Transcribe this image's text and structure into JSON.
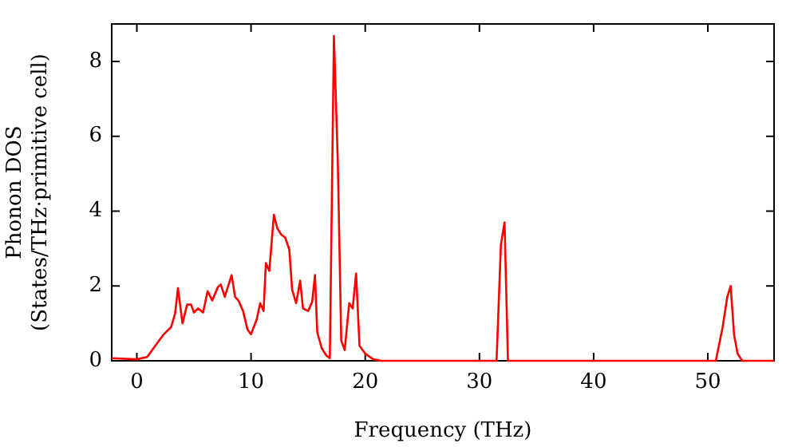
{
  "chart_data": {
    "type": "line",
    "xlabel": "Frequency (THz)",
    "ylabel": "Phonon DOS\n(States/THz·primitive cell)",
    "xlim": [
      -2.2,
      55.8
    ],
    "ylim": [
      0,
      9
    ],
    "xticks": [
      0,
      10,
      20,
      30,
      40,
      50
    ],
    "yticks": [
      0,
      2,
      4,
      6,
      8
    ],
    "grid": false,
    "legend": false,
    "marker": "none",
    "line_style": "solid",
    "series": [
      {
        "color": "#ff0000",
        "x": [
          -2.2,
          0,
          0.9,
          2.3,
          3,
          3.35,
          3.6,
          4,
          4.4,
          4.75,
          5,
          5.35,
          5.8,
          6.2,
          6.6,
          7.1,
          7.35,
          7.7,
          8.3,
          8.6,
          8.9,
          9.3,
          9.7,
          10,
          10.5,
          10.8,
          11.1,
          11.3,
          11.6,
          12,
          12.3,
          12.65,
          13,
          13.35,
          13.6,
          13.95,
          14.3,
          14.55,
          15,
          15.35,
          15.6,
          15.8,
          16.2,
          16.6,
          16.9,
          17.26,
          17.6,
          17.9,
          18.2,
          18.6,
          18.9,
          19.2,
          19.5,
          20,
          20.7,
          21.4,
          25,
          31.5,
          31.88,
          32.2,
          32.5,
          40,
          50.7,
          51.3,
          51.7,
          52,
          52.3,
          52.6,
          53,
          55.8
        ],
        "values": [
          0.07,
          0.04,
          0.1,
          0.69,
          0.9,
          1.26,
          1.94,
          1,
          1.5,
          1.5,
          1.29,
          1.4,
          1.29,
          1.86,
          1.61,
          1.97,
          2.04,
          1.71,
          2.29,
          1.71,
          1.61,
          1.33,
          0.83,
          0.71,
          1.11,
          1.54,
          1.33,
          2.61,
          2.4,
          3.9,
          3.54,
          3.37,
          3.29,
          2.97,
          1.9,
          1.54,
          2.14,
          1.4,
          1.33,
          1.57,
          2.29,
          0.76,
          0.33,
          0.14,
          0.07,
          8.68,
          5.3,
          0.54,
          0.29,
          1.54,
          1.4,
          2.33,
          0.4,
          0.19,
          0.04,
          0,
          0,
          0,
          3.1,
          3.7,
          0,
          0,
          0,
          0.9,
          1.7,
          2,
          0.7,
          0.2,
          0,
          0
        ]
      }
    ]
  }
}
